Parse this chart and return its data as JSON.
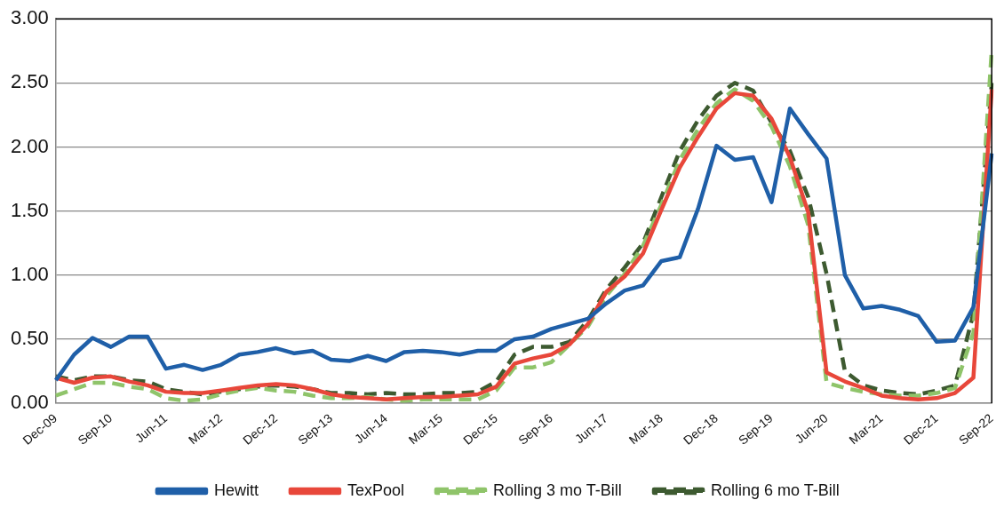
{
  "chart_data": {
    "type": "line",
    "categories": [
      "Dec-09",
      null,
      null,
      "Sep-10",
      null,
      null,
      "Jun-11",
      null,
      null,
      "Mar-12",
      null,
      null,
      "Dec-12",
      null,
      null,
      "Sep-13",
      null,
      null,
      "Jun-14",
      null,
      null,
      "Mar-15",
      null,
      null,
      "Dec-15",
      null,
      null,
      "Sep-16",
      null,
      null,
      "Jun-17",
      null,
      null,
      "Mar-18",
      null,
      null,
      "Dec-18",
      null,
      null,
      "Sep-19",
      null,
      null,
      "Jun-20",
      null,
      null,
      "Mar-21",
      null,
      null,
      "Dec-21",
      null,
      null,
      "Sep-22"
    ],
    "series": [
      {
        "name": "Hewitt",
        "color": "#1f5fa8",
        "line_style": "solid",
        "values": [
          0.18,
          0.38,
          0.51,
          0.44,
          0.52,
          0.52,
          0.27,
          0.3,
          0.26,
          0.3,
          0.38,
          0.4,
          0.43,
          0.39,
          0.41,
          0.34,
          0.33,
          0.37,
          0.33,
          0.4,
          0.41,
          0.4,
          0.38,
          0.41,
          0.41,
          0.5,
          0.52,
          0.58,
          0.62,
          0.66,
          0.78,
          0.88,
          0.92,
          1.11,
          1.14,
          1.52,
          2.01,
          1.9,
          1.92,
          1.57,
          2.3,
          2.1,
          1.91,
          1.0,
          0.74,
          0.76,
          0.73,
          0.68,
          0.48,
          0.49,
          0.75,
          1.95
        ]
      },
      {
        "name": "TexPool",
        "color": "#e8473a",
        "line_style": "solid",
        "values": [
          0.2,
          0.16,
          0.2,
          0.21,
          0.17,
          0.14,
          0.09,
          0.08,
          0.08,
          0.1,
          0.12,
          0.14,
          0.15,
          0.14,
          0.11,
          0.07,
          0.05,
          0.04,
          0.03,
          0.04,
          0.05,
          0.05,
          0.06,
          0.07,
          0.13,
          0.31,
          0.35,
          0.38,
          0.46,
          0.62,
          0.87,
          0.99,
          1.17,
          1.51,
          1.84,
          2.08,
          2.3,
          2.42,
          2.4,
          2.22,
          1.92,
          1.49,
          0.24,
          0.17,
          0.12,
          0.06,
          0.04,
          0.03,
          0.04,
          0.08,
          0.2,
          2.45
        ]
      },
      {
        "name": "Rolling 3 mo T-Bill",
        "color": "#8fc46a",
        "line_style": "dashed",
        "values": [
          0.06,
          0.11,
          0.16,
          0.16,
          0.13,
          0.11,
          0.04,
          0.02,
          0.03,
          0.07,
          0.1,
          0.12,
          0.1,
          0.09,
          0.06,
          0.04,
          0.04,
          0.05,
          0.03,
          0.02,
          0.03,
          0.03,
          0.03,
          0.03,
          0.1,
          0.28,
          0.28,
          0.32,
          0.46,
          0.6,
          0.84,
          1.01,
          1.23,
          1.55,
          1.9,
          2.14,
          2.34,
          2.45,
          2.36,
          2.16,
          1.85,
          1.39,
          0.16,
          0.12,
          0.09,
          0.07,
          0.06,
          0.06,
          0.08,
          0.12,
          0.55,
          2.76
        ]
      },
      {
        "name": "Rolling 6 mo T-Bill",
        "color": "#3d5a30",
        "line_style": "dashed",
        "values": [
          0.21,
          0.18,
          0.21,
          0.21,
          0.18,
          0.17,
          0.11,
          0.09,
          0.07,
          0.09,
          0.11,
          0.13,
          0.14,
          0.13,
          0.11,
          0.08,
          0.08,
          0.07,
          0.08,
          0.07,
          0.07,
          0.08,
          0.08,
          0.09,
          0.17,
          0.38,
          0.44,
          0.44,
          0.48,
          0.65,
          0.89,
          1.06,
          1.25,
          1.61,
          1.97,
          2.21,
          2.4,
          2.5,
          2.44,
          2.19,
          1.97,
          1.61,
          1.01,
          0.25,
          0.14,
          0.1,
          0.08,
          0.07,
          0.1,
          0.14,
          0.7,
          2.5
        ]
      }
    ],
    "ylim": [
      0,
      3
    ],
    "yticks": [
      {
        "value": 0,
        "label": "0.00"
      },
      {
        "value": 0.5,
        "label": "0.50"
      },
      {
        "value": 1,
        "label": "1.00"
      },
      {
        "value": 1.5,
        "label": "1.50"
      },
      {
        "value": 2,
        "label": "2.00"
      },
      {
        "value": 2.5,
        "label": "2.50"
      },
      {
        "value": 3,
        "label": "3.00"
      }
    ],
    "grid": "y",
    "legend": "bottom",
    "marker": "none"
  }
}
